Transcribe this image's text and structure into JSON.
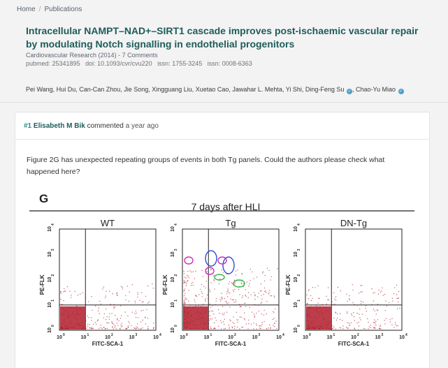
{
  "breadcrumb": {
    "home": "Home",
    "separator": "/",
    "current": "Publications"
  },
  "publication": {
    "title": "Intracellular NAMPT–NAD+–SIRT1 cascade improves post-ischaemic vascular repair by modulating Notch signalling in endothelial progenitors",
    "journal": "Cardiovascular Research (2014)",
    "comments_link": "7 Comments",
    "ids": [
      "pubmed: 25341895",
      "doi: 10.1093/cvr/cvu220",
      "issn: 1755-3245",
      "issn: 0008-6363"
    ],
    "authors_text": "Pei Wang, Hui Du, Can-Can Zhou, Jie Song, Xingguang Liu, Xuetao Cao, Jawahar L. Mehta, Yi Shi, Ding-Feng Su",
    "last_author": "Chao-Yu Miao",
    "verified_icon": "check-badge-icon",
    "accent_color": "#1e5c5a"
  },
  "comment": {
    "number": "#1",
    "author": "Elisabeth M Bik",
    "verb": "commented",
    "time": "a year ago",
    "body": "Figure 2G has unexpected repeating groups of events in both Tg panels. Could the authors please check what happened here?"
  },
  "figure": {
    "panel_letter": "G",
    "title": "7 days after HLI",
    "panels": [
      "WT",
      "Tg",
      "DN-Tg"
    ],
    "xlabel": "FITC-SCA-1",
    "ylabel": "PE-FLK",
    "x_ticks": [
      "10",
      "10",
      "10",
      "10",
      "10"
    ],
    "x_tick_exponents": [
      "0",
      "1",
      "2",
      "3",
      "4"
    ],
    "y_ticks": [
      "10",
      "10",
      "10",
      "10",
      "10"
    ],
    "y_tick_exponents": [
      "0",
      "1",
      "2",
      "3",
      "4"
    ],
    "dot_color": "#b01c2a",
    "annotation_colors": {
      "blue": "#2f4fd0",
      "magenta": "#d030c0",
      "green": "#2fb54a"
    }
  }
}
